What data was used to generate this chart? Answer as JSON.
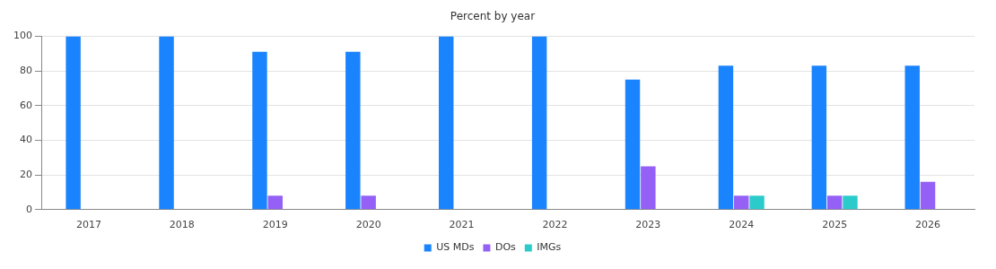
{
  "chart_data": {
    "type": "bar",
    "title": "Percent by year",
    "categories": [
      "2017",
      "2018",
      "2019",
      "2020",
      "2021",
      "2022",
      "2023",
      "2024",
      "2025",
      "2026"
    ],
    "series": [
      {
        "name": "US MDs",
        "color": "#1a84ff",
        "values": [
          100,
          100,
          91,
          91,
          100,
          100,
          75,
          83,
          83,
          83
        ]
      },
      {
        "name": "DOs",
        "color": "#9460f5",
        "values": [
          0,
          0,
          8,
          8,
          0,
          0,
          25,
          8,
          8,
          16
        ]
      },
      {
        "name": "IMGs",
        "color": "#2ccbcb",
        "values": [
          0,
          0,
          0,
          0,
          0,
          0,
          0,
          8,
          8,
          0
        ]
      }
    ],
    "ylim": [
      0,
      100
    ],
    "yticks": [
      0,
      20,
      40,
      60,
      80,
      100
    ],
    "grid": "y",
    "legend": "bottom"
  }
}
